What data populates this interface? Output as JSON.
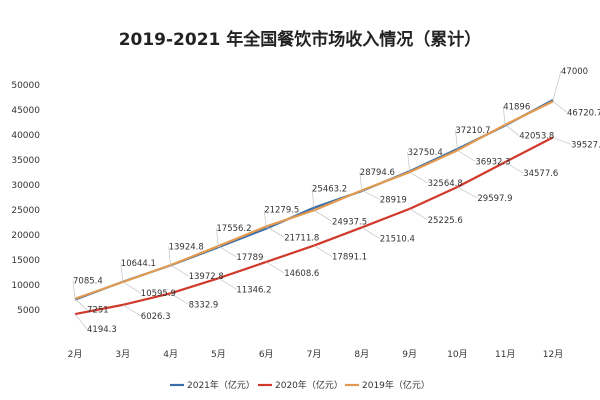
{
  "chart_data": {
    "type": "line",
    "title": "2019-2021 年全国餐饮市场收入情况（累计）",
    "categories": [
      "2月",
      "3月",
      "4月",
      "5月",
      "6月",
      "7月",
      "8月",
      "9月",
      "10月",
      "11月",
      "12月"
    ],
    "ylim": [
      5000,
      50000
    ],
    "yticks": [
      "50000",
      "45000",
      "40000",
      "35000",
      "30000",
      "25000",
      "20000",
      "15000",
      "10000",
      "5000"
    ],
    "series": [
      {
        "name": "2021年（亿元）",
        "color": "#3a6fa8",
        "values": [
          7085.4,
          10644.1,
          13924.8,
          17556.2,
          21279.5,
          25463.2,
          28794.6,
          32750.4,
          37210.7,
          41896,
          47000
        ],
        "labels": [
          "7085.4",
          "10644.1",
          "13924.8",
          "17556.2",
          "21279.5",
          "25463.2",
          "28794.6",
          "32750.4",
          "37210.7",
          "41896",
          "47000"
        ]
      },
      {
        "name": "2020年（亿元）",
        "color": "#d0392b",
        "values": [
          4194.3,
          6026.3,
          8332.9,
          11346.2,
          14608.6,
          17891.1,
          21510.4,
          25225.6,
          29597.9,
          34577.6,
          39527.3
        ],
        "labels": [
          "4194.3",
          "6026.3",
          "8332.9",
          "11346.2",
          "14608.6",
          "17891.1",
          "21510.4",
          "25225.6",
          "29597.9",
          "34577.6",
          "39527.3"
        ]
      },
      {
        "name": "2019年（亿元）",
        "color": "#e39a4f",
        "values": [
          7251,
          10595.9,
          13972.8,
          17789,
          21711.8,
          24937.5,
          28919,
          32564.8,
          36932.3,
          42053.8,
          46720.7
        ],
        "labels": [
          "7251",
          "10595.9",
          "13972.8",
          "17789",
          "21711.8",
          "24937.5",
          "28919",
          "32564.8",
          "36932.3",
          "42053.8",
          "46720.7"
        ]
      }
    ],
    "legend_position": "bottom",
    "grid": false
  }
}
